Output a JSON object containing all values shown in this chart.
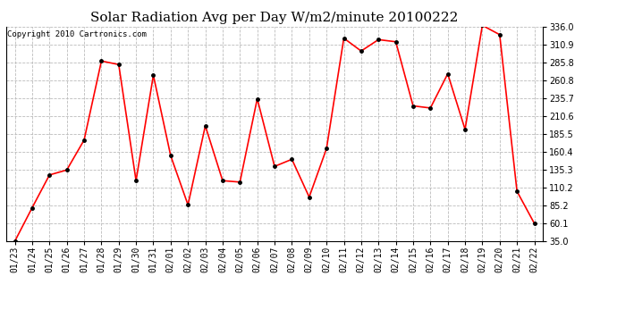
{
  "title": "Solar Radiation Avg per Day W/m2/minute 20100222",
  "copyright": "Copyright 2010 Cartronics.com",
  "dates": [
    "01/23",
    "01/24",
    "01/25",
    "01/26",
    "01/27",
    "01/28",
    "01/29",
    "01/30",
    "01/31",
    "02/01",
    "02/02",
    "02/03",
    "02/04",
    "02/05",
    "02/06",
    "02/07",
    "02/08",
    "02/09",
    "02/10",
    "02/11",
    "02/12",
    "02/13",
    "02/14",
    "02/15",
    "02/16",
    "02/17",
    "02/18",
    "02/19",
    "02/20",
    "02/21",
    "02/22"
  ],
  "values": [
    35.0,
    82.0,
    128.0,
    135.0,
    177.0,
    288.0,
    283.0,
    120.0,
    268.0,
    155.0,
    86.0,
    197.0,
    120.0,
    118.0,
    235.0,
    140.0,
    150.0,
    97.0,
    165.0,
    320.0,
    302.0,
    318.0,
    315.0,
    225.0,
    222.0,
    270.0,
    192.0,
    338.0,
    325.0,
    105.0,
    60.1
  ],
  "line_color": "#FF0000",
  "marker": "o",
  "marker_size": 2.5,
  "line_width": 1.2,
  "ylim": [
    35.0,
    336.0
  ],
  "yticks": [
    35.0,
    60.1,
    85.2,
    110.2,
    135.3,
    160.4,
    185.5,
    210.6,
    235.7,
    260.8,
    285.8,
    310.9,
    336.0
  ],
  "background_color": "#FFFFFF",
  "grid_color": "#BBBBBB",
  "title_fontsize": 11,
  "tick_fontsize": 7,
  "copyright_fontsize": 6.5
}
